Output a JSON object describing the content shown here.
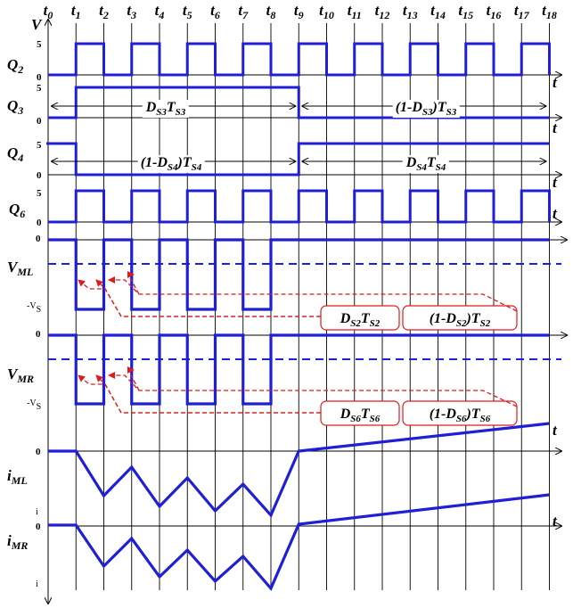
{
  "time_labels": [
    {
      "base": "t",
      "sub": "0"
    },
    {
      "base": "t",
      "sub": "1"
    },
    {
      "base": "t",
      "sub": "2"
    },
    {
      "base": "t",
      "sub": "3"
    },
    {
      "base": "t",
      "sub": "4"
    },
    {
      "base": "t",
      "sub": "5"
    },
    {
      "base": "t",
      "sub": "6"
    },
    {
      "base": "t",
      "sub": "7"
    },
    {
      "base": "t",
      "sub": "8"
    },
    {
      "base": "t",
      "sub": "9"
    },
    {
      "base": "t",
      "sub": "10"
    },
    {
      "base": "t",
      "sub": "11"
    },
    {
      "base": "t",
      "sub": "12"
    },
    {
      "base": "t",
      "sub": "13"
    },
    {
      "base": "t",
      "sub": "14"
    },
    {
      "base": "t",
      "sub": "15"
    },
    {
      "base": "t",
      "sub": "16"
    },
    {
      "base": "t",
      "sub": "17"
    },
    {
      "base": "t",
      "sub": "18"
    }
  ],
  "y_axis_symbol": "V",
  "axis_t": "t",
  "rows": {
    "q2": {
      "base": "Q",
      "sub": "2",
      "top_tick": "5",
      "zero_tick": "0"
    },
    "q3": {
      "base": "Q",
      "sub": "3",
      "top_tick": "5",
      "zero_tick": "0"
    },
    "q4": {
      "base": "Q",
      "sub": "4",
      "top_tick": "5",
      "zero_tick": "0"
    },
    "q6": {
      "base": "Q",
      "sub": "6",
      "top_tick": "5",
      "zero_tick": "0"
    },
    "vml": {
      "base": "V",
      "sub": "ML",
      "zero_tick": "0",
      "neg_tick_base": "-V",
      "neg_tick_sub": "S"
    },
    "vmr": {
      "base": "V",
      "sub": "MR",
      "zero_tick": "0",
      "neg_tick_base": "-V",
      "neg_tick_sub": "S"
    },
    "iml": {
      "base": "i",
      "sub": "ML",
      "zero_tick": "0",
      "low_tick": "i"
    },
    "imr": {
      "base": "i",
      "sub": "MR",
      "zero_tick": "0",
      "low_tick": "i"
    }
  },
  "annotations": {
    "q3_left": {
      "parts": [
        {
          "t": "D"
        },
        {
          "t": "S3",
          "sub": true
        },
        {
          "t": "T"
        },
        {
          "t": "S3",
          "sub": true
        }
      ]
    },
    "q3_right": {
      "parts": [
        {
          "t": "(1-D"
        },
        {
          "t": "S3",
          "sub": true
        },
        {
          "t": ")T"
        },
        {
          "t": "S3",
          "sub": true
        }
      ]
    },
    "q4_left": {
      "parts": [
        {
          "t": "(1-D"
        },
        {
          "t": "S4",
          "sub": true
        },
        {
          "t": ")T"
        },
        {
          "t": "S4",
          "sub": true
        }
      ]
    },
    "q4_right": {
      "parts": [
        {
          "t": "D"
        },
        {
          "t": "S4",
          "sub": true
        },
        {
          "t": "T"
        },
        {
          "t": "S4",
          "sub": true
        }
      ]
    },
    "vml_box1": {
      "parts": [
        {
          "t": "D"
        },
        {
          "t": "S2",
          "sub": true
        },
        {
          "t": "T"
        },
        {
          "t": "S2",
          "sub": true
        }
      ]
    },
    "vml_box2": {
      "parts": [
        {
          "t": "(1-D"
        },
        {
          "t": "S2",
          "sub": true
        },
        {
          "t": ")T"
        },
        {
          "t": "S2",
          "sub": true
        }
      ]
    },
    "vmr_box1": {
      "parts": [
        {
          "t": "D"
        },
        {
          "t": "S6",
          "sub": true
        },
        {
          "t": "T"
        },
        {
          "t": "S6",
          "sub": true
        }
      ]
    },
    "vmr_box2": {
      "parts": [
        {
          "t": "(1-D"
        },
        {
          "t": "S6",
          "sub": true
        },
        {
          "t": ")T"
        },
        {
          "t": "S6",
          "sub": true
        }
      ]
    }
  },
  "colors": {
    "waveform": "#1f1fd6",
    "annotation": "#e01b1b",
    "grid": "#000000"
  }
}
